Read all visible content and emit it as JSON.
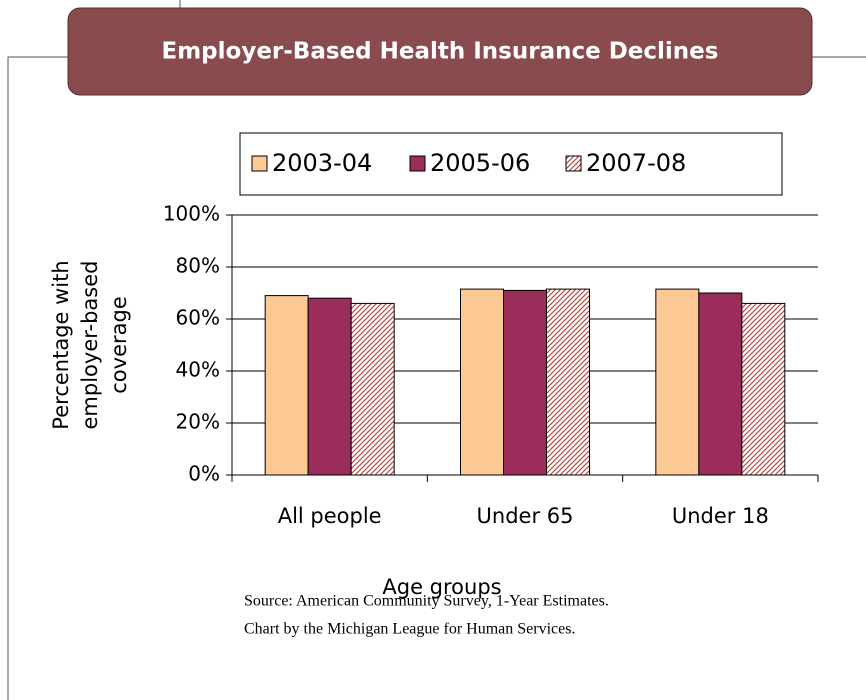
{
  "chart_data": {
    "type": "bar",
    "title": "Employer-Based Health Insurance Declines",
    "categories": [
      "All people",
      "Under 65",
      "Under 18"
    ],
    "series": [
      {
        "name": "2003-04",
        "color": "#fcc995",
        "values": [
          69,
          71.5,
          71.5
        ]
      },
      {
        "name": "2005-06",
        "color": "#9b2d5a",
        "values": [
          68,
          71,
          70
        ]
      },
      {
        "name": "2007-08",
        "color": "#b03a2e",
        "pattern": "hatch",
        "values": [
          66,
          71.5,
          66
        ]
      }
    ],
    "ylim": [
      0,
      100
    ],
    "yticks": [
      {
        "value": 0,
        "label": "0%"
      },
      {
        "value": 20,
        "label": "20%"
      },
      {
        "value": 40,
        "label": "40%"
      },
      {
        "value": 60,
        "label": "60%"
      },
      {
        "value": 80,
        "label": "80%"
      },
      {
        "value": 100,
        "label": "100%"
      }
    ],
    "grid": true,
    "ylabel": [
      "Percentage with",
      "employer-based",
      "coverage"
    ],
    "xlabel": "Age groups",
    "source": [
      "Source:  American Community Survey, 1-Year Estimates.",
      "Chart by the Michigan League for Human Services."
    ]
  }
}
